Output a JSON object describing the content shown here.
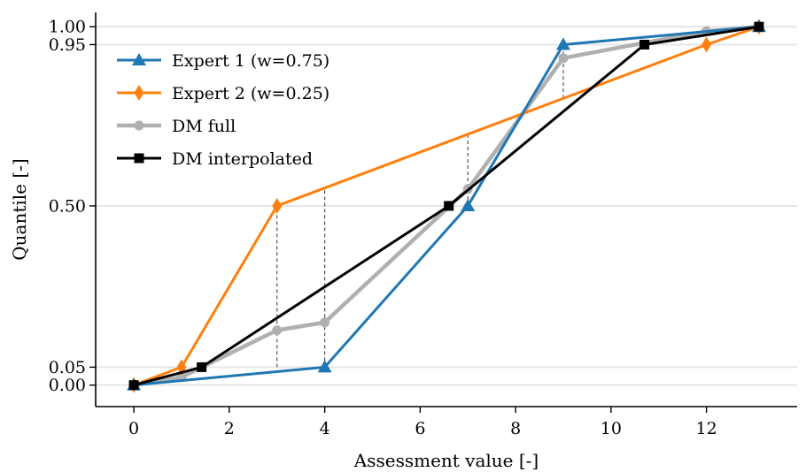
{
  "chart_data": {
    "type": "line",
    "title": "",
    "xlabel": "Assessment value [-]",
    "ylabel": "Quantile [-]",
    "xlim": [
      -0.8,
      13.9
    ],
    "ylim": [
      -0.06,
      1.04
    ],
    "xticks": [
      0,
      2,
      4,
      6,
      8,
      10,
      12
    ],
    "xtick_labels": [
      "0",
      "2",
      "4",
      "6",
      "8",
      "10",
      "12"
    ],
    "yticks": [
      0.0,
      0.05,
      0.5,
      0.95,
      1.0
    ],
    "ytick_labels": [
      "0.00",
      "0.05",
      "0.50",
      "0.95",
      "1.00"
    ],
    "grid": "horizontal at y ticks",
    "legend": "upper-left",
    "series": [
      {
        "name": "Expert 1 (w=0.75)",
        "color": "#1f77b4",
        "marker": "triangle",
        "x": [
          0,
          4,
          7,
          9,
          13.1
        ],
        "y": [
          0.0,
          0.05,
          0.5,
          0.95,
          1.0
        ]
      },
      {
        "name": "Expert 2 (w=0.25)",
        "color": "#ff7f0e",
        "marker": "diamond",
        "x": [
          0,
          1,
          3,
          12,
          13.1
        ],
        "y": [
          0.0,
          0.05,
          0.5,
          0.95,
          1.0
        ]
      },
      {
        "name": "DM full",
        "color": "#b0b0b0",
        "marker": "circle",
        "x": [
          0,
          1,
          3,
          4,
          7,
          9,
          12,
          13.1
        ],
        "y": [
          0.0,
          0.0219,
          0.1531,
          0.175,
          0.5469,
          0.9125,
          0.9875,
          1.0
        ]
      },
      {
        "name": "DM interpolated",
        "color": "#000000",
        "marker": "square",
        "x": [
          0,
          1.42,
          6.6,
          10.7,
          13.1
        ],
        "y": [
          0.0,
          0.05,
          0.5,
          0.95,
          1.0
        ]
      }
    ],
    "vlines": [
      {
        "x": 3,
        "y0": 0.05,
        "y1": 0.5
      },
      {
        "x": 4,
        "y0": 0.05,
        "y1": 0.55
      },
      {
        "x": 7,
        "y0": 0.5,
        "y1": 0.7
      },
      {
        "x": 9,
        "y0": 0.8,
        "y1": 0.95
      }
    ]
  },
  "colors": {
    "grid": "#e6e6e6",
    "axis": "#000000",
    "guide": "#555555"
  }
}
